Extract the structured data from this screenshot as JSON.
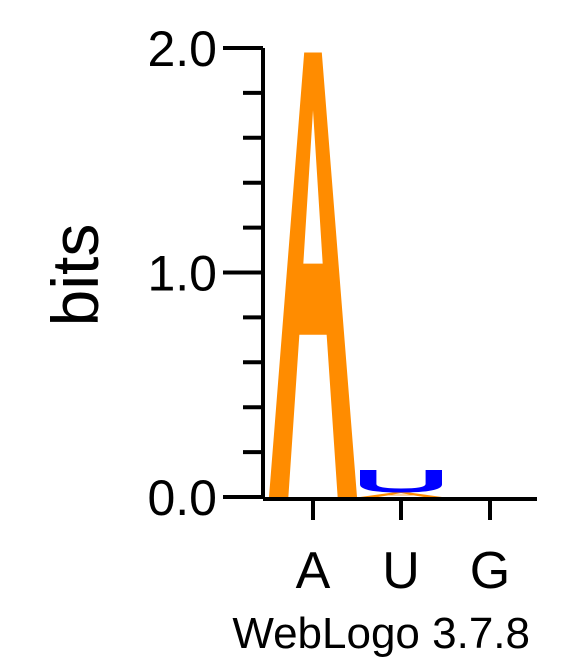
{
  "chart_data": {
    "type": "sequence-logo",
    "ylabel": "bits",
    "ylim": [
      0,
      2.0
    ],
    "yticks": [
      {
        "value": 0.0,
        "label": "0.0"
      },
      {
        "value": 1.0,
        "label": "1.0"
      },
      {
        "value": 2.0,
        "label": "2.0"
      }
    ],
    "positions": [
      "A",
      "U",
      "G"
    ],
    "stacks": [
      {
        "position": "A",
        "letters": [
          {
            "letter": "A",
            "bits": 1.98
          }
        ]
      },
      {
        "position": "U",
        "letters": [
          {
            "letter": "A",
            "bits": 0.02
          },
          {
            "letter": "U",
            "bits": 0.1
          }
        ]
      },
      {
        "position": "G",
        "letters": []
      }
    ],
    "colors": {
      "A": "#ff8c00",
      "U": "#0000ff",
      "G": "#ffa500"
    },
    "credit": "WebLogo 3.7.8"
  }
}
